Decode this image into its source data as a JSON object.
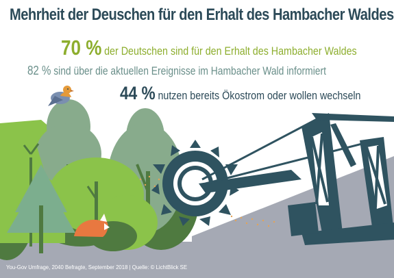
{
  "title": "Mehrheit der Deuschen für den Erhalt des Hambacher Waldes",
  "stats": [
    {
      "value": "70 %",
      "text": "der Deutschen sind für den Erhalt des Hambacher Waldes"
    },
    {
      "value": "82 %",
      "text": "sind über die aktuellen Ereignisse im Hambacher Wald informiert"
    },
    {
      "value": "44 %",
      "text": "nutzen bereits Ökostrom oder wollen wechseln"
    }
  ],
  "source": "You-Gov Umfrage, 2040 Befragte, September 2018 | Quelle: © LichtBlick SE",
  "illustration": {
    "elements": [
      "bird-icon",
      "fox-icon",
      "forest-trees",
      "bucket-wheel-excavator-icon"
    ]
  },
  "colors": {
    "title": "#2c4a58",
    "stat1": "#8dae2e",
    "stat2": "#6a8f8a",
    "stat3": "#2c4a58",
    "ground": "#a5a9b4",
    "excavator": "#2f5360",
    "tree_light": "#8bc34a",
    "tree_dark": "#4f7a40",
    "tree_sage": "#88ab8c",
    "fox": "#e87840",
    "bird": "#e59a3a"
  }
}
